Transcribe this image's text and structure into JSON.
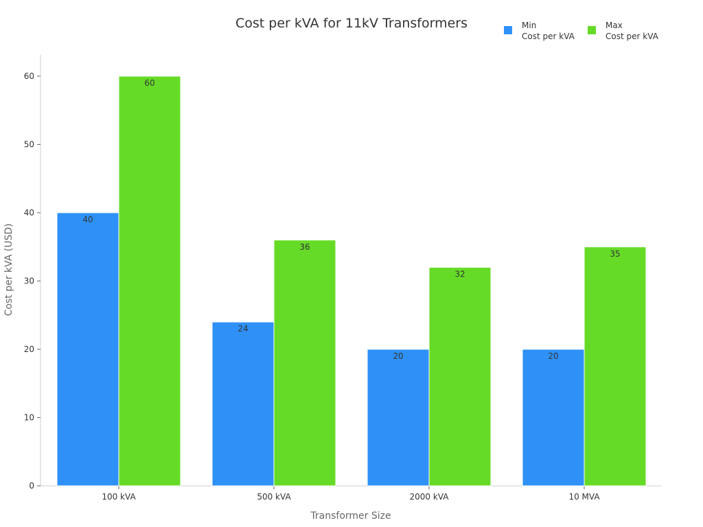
{
  "chart_data": {
    "type": "bar",
    "title": "Cost per kVA for 11kV Transformers",
    "xlabel": "Transformer Size",
    "ylabel": "Cost per kVA (USD)",
    "categories": [
      "100 kVA",
      "500 kVA",
      "2000 kVA",
      "10 MVA"
    ],
    "series": [
      {
        "name": "Min\nCost per kVA",
        "name_lines": [
          "Min",
          "Cost per kVA"
        ],
        "values": [
          40,
          24,
          20,
          20
        ],
        "color": "#2f91f7"
      },
      {
        "name": "Max\nCost per kVA",
        "name_lines": [
          "Max",
          "Cost per kVA"
        ],
        "values": [
          60,
          36,
          32,
          35
        ],
        "color": "#66db27"
      }
    ],
    "ylim": [
      0,
      63
    ],
    "yticks": [
      0,
      10,
      20,
      30,
      40,
      50,
      60
    ],
    "grid": false,
    "legend": "top-right",
    "data_labels": true
  }
}
